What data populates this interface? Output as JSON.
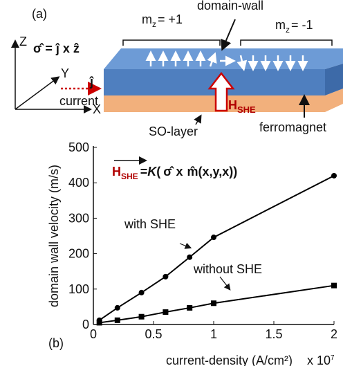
{
  "diagram": {
    "panel_label": "(a)",
    "mz_left": {
      "m": "m",
      "sub": "z",
      "rest": "= +1"
    },
    "domain_wall": "domain-wall",
    "mz_right": {
      "m": "m",
      "sub": "z",
      "rest": "= -1"
    },
    "axes": {
      "z": "Z",
      "y": "Y",
      "x": "X"
    },
    "sigma_def": "σ̂ = ĵ x ẑ",
    "current": "current",
    "j_hat": "ĵ",
    "hshe": {
      "h": "H",
      "sub": "SHE"
    },
    "so_layer": "SO-layer",
    "ferromagnet": "ferromagnet"
  },
  "chart_data": {
    "type": "line",
    "panel_label": "(b)",
    "formula": {
      "h": "H",
      "sub": "SHE",
      "eq": "=",
      "k": "K",
      "open": "(",
      "sigma": "σ̂",
      "times": "x",
      "m": "m̂(x,y,x))"
    },
    "x_label": "current-density (A/cm²)",
    "x_multiplier": {
      "base": "x 10",
      "exp": "7"
    },
    "y_label": "domain wall velocity (m/s)",
    "x": [
      0.05,
      0.2,
      0.4,
      0.6,
      0.8,
      1.0,
      2.0
    ],
    "series": [
      {
        "name": "with SHE",
        "color": "#000000",
        "marker": "circle",
        "values": [
          12,
          47,
          90,
          135,
          190,
          246,
          420
        ]
      },
      {
        "name": "without SHE",
        "color": "#000000",
        "marker": "square",
        "values": [
          5,
          12,
          22,
          35,
          47,
          60,
          110
        ]
      }
    ],
    "xlim": [
      0,
      2
    ],
    "xticks": [
      0,
      0.5,
      1,
      1.5,
      2
    ],
    "ylim": [
      0,
      500
    ],
    "yticks": [
      0,
      100,
      200,
      300,
      400,
      500
    ]
  }
}
